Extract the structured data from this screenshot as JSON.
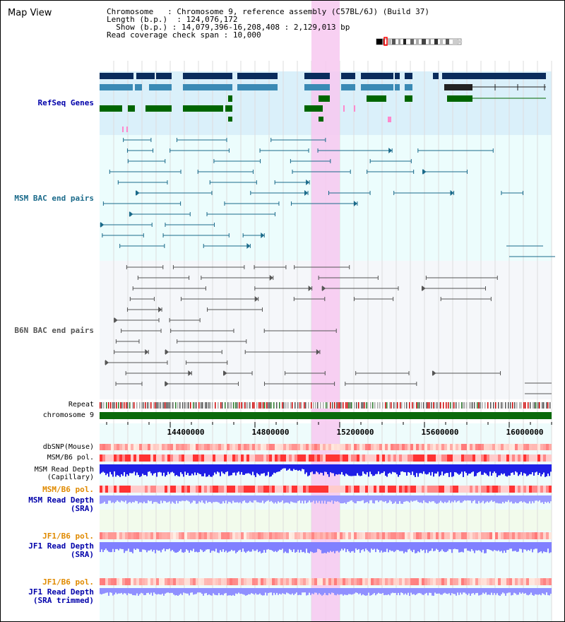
{
  "window_title": "Map View",
  "info": {
    "chromosome_label": "Chromosome",
    "chromosome_value": "Chromosome 9, reference assembly (C57BL/6J) (Build 37)",
    "length_label": "Length (b.p.)",
    "length_value": "124,076,172",
    "show_label": "Show (b.p.)",
    "show_value": "14,079,396-16,208,408 : 2,129,013 bp",
    "coverage_label": "Read coverage check span",
    "coverage_value": "10,000"
  },
  "tracks": {
    "refseq": "RefSeq Genes",
    "msm_bac": "MSM BAC end pairs",
    "b6n_bac": "B6N BAC end pairs",
    "repeat": "Repeat",
    "chromosome": "chromosome 9",
    "dbsnp": "dbSNP(Mouse)",
    "msm_b6_pol": "MSM/B6 pol.",
    "msm_read_depth_cap_1": "MSM Read Depth",
    "msm_read_depth_cap_2": "(Capillary)",
    "msm_b6_pol_sra": "MSM/B6 pol.",
    "msm_read_depth_sra_1": "MSM Read Depth",
    "msm_read_depth_sra_2": "(SRA)",
    "jf1_b6_pol": "JF1/B6 pol.",
    "jf1_read_depth_1": "JF1 Read Depth",
    "jf1_read_depth_2": "(SRA)",
    "jf1_b6_pol_trim": "JF1/B6 pol.",
    "jf1_read_depth_trim_1": "JF1 Read Depth",
    "jf1_read_depth_trim_2": "(SRA trimmed)"
  },
  "axis": {
    "ticks": [
      "14400000",
      "14800000",
      "15200000",
      "15600000",
      "16000000"
    ]
  },
  "colors": {
    "refseq_dark": "#0a2c5c",
    "refseq_mid": "#3a8ab5",
    "refseq_green": "#006600",
    "msm_bac": "#1a6a8a",
    "b6n_bac": "#555555",
    "highlight": "#f7c8f0",
    "label_blue": "#0000aa",
    "label_teal": "#1a6a8a",
    "label_orange": "#e08a00",
    "chrom_green": "#0a6a0a"
  }
}
